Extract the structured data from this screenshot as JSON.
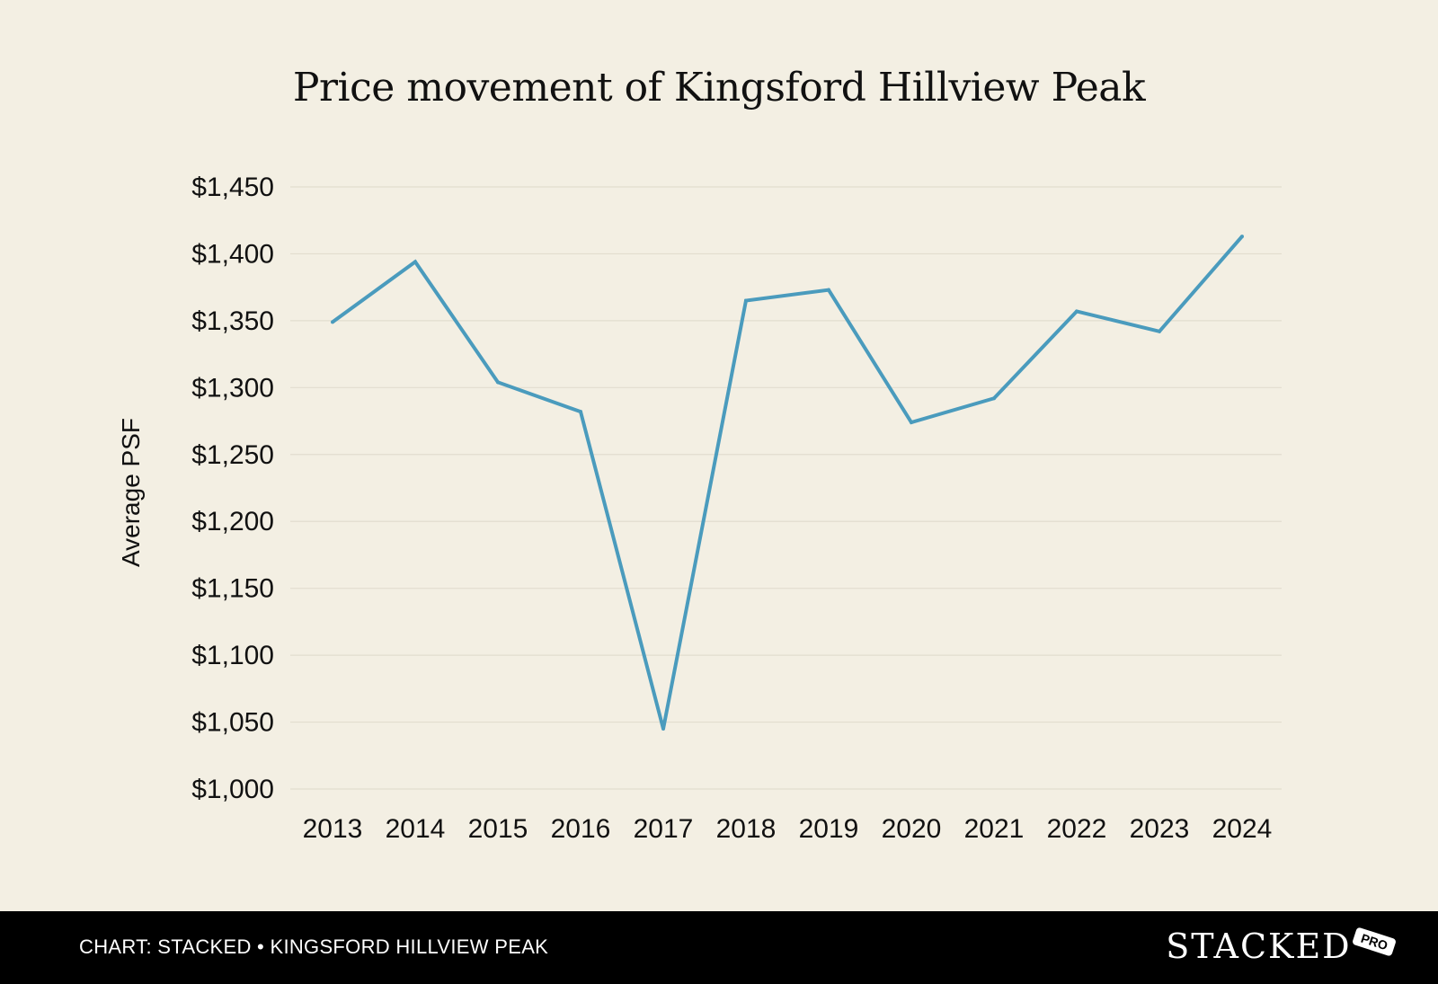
{
  "chart_data": {
    "type": "line",
    "title": "Price movement of Kingsford Hillview Peak",
    "xlabel": "",
    "ylabel": "Average PSF",
    "categories": [
      "2013",
      "2014",
      "2015",
      "2016",
      "2017",
      "2018",
      "2019",
      "2020",
      "2021",
      "2022",
      "2023",
      "2024"
    ],
    "series": [
      {
        "name": "Average PSF",
        "values": [
          1349,
          1394,
          1304,
          1282,
          1045,
          1365,
          1373,
          1274,
          1292,
          1357,
          1342,
          1413
        ]
      }
    ],
    "ylim": [
      1000,
      1450
    ],
    "yticks": [
      1000,
      1050,
      1100,
      1150,
      1200,
      1250,
      1300,
      1350,
      1400,
      1450
    ],
    "ytick_labels": [
      "$1,000",
      "$1,050",
      "$1,100",
      "$1,150",
      "$1,200",
      "$1,250",
      "$1,300",
      "$1,350",
      "$1,400",
      "$1,450"
    ],
    "grid": "horizontal",
    "line_color": "#4a9bbd",
    "grid_color": "#e2ddcf"
  },
  "footer": {
    "source": "CHART: STACKED • KINGSFORD HILLVIEW PEAK"
  },
  "brand": {
    "name": "STACKED",
    "badge": "PRO"
  }
}
